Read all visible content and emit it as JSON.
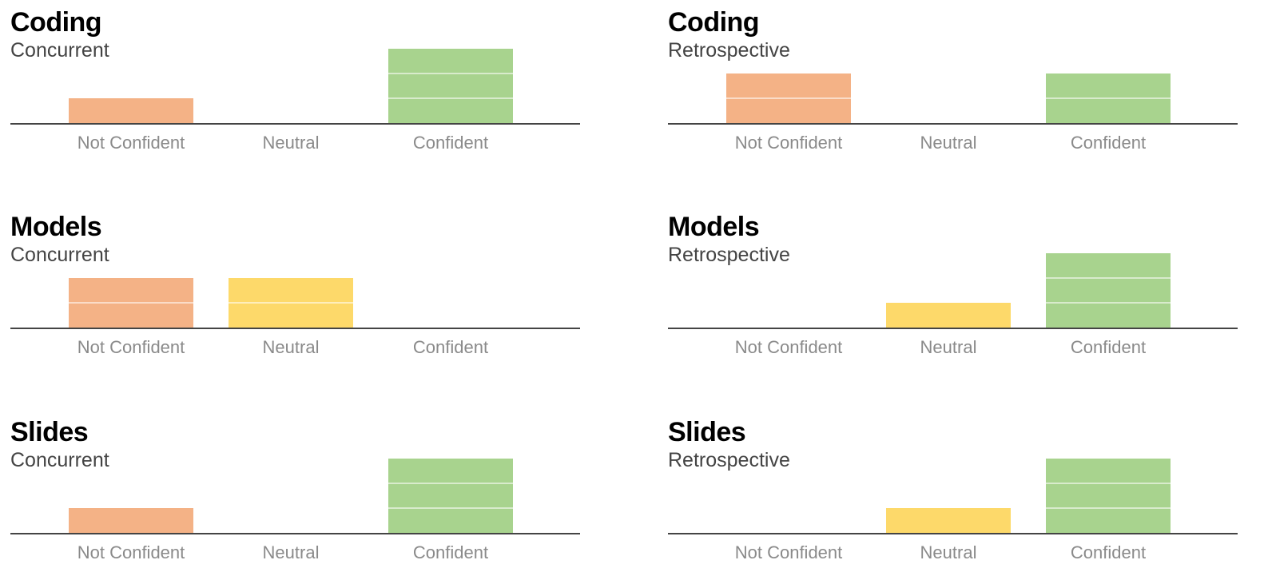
{
  "colors": {
    "not_confident": "#F4B286",
    "neutral": "#FDD96A",
    "confident": "#A8D38E",
    "baseline": "#444444",
    "category_label": "#8A8A8A"
  },
  "chart_data": [
    {
      "type": "bar",
      "title": "Coding",
      "subtitle": "Concurrent",
      "categories": [
        "Not Confident",
        "Neutral",
        "Confident"
      ],
      "values": [
        1,
        0,
        3
      ],
      "ylim": [
        0,
        3
      ]
    },
    {
      "type": "bar",
      "title": "Coding",
      "subtitle": "Retrospective",
      "categories": [
        "Not Confident",
        "Neutral",
        "Confident"
      ],
      "values": [
        2,
        0,
        2
      ],
      "ylim": [
        0,
        3
      ]
    },
    {
      "type": "bar",
      "title": "Models",
      "subtitle": "Concurrent",
      "categories": [
        "Not Confident",
        "Neutral",
        "Confident"
      ],
      "values": [
        2,
        2,
        0
      ],
      "ylim": [
        0,
        3
      ]
    },
    {
      "type": "bar",
      "title": "Models",
      "subtitle": "Retrospective",
      "categories": [
        "Not Confident",
        "Neutral",
        "Confident"
      ],
      "values": [
        0,
        1,
        3
      ],
      "ylim": [
        0,
        3
      ]
    },
    {
      "type": "bar",
      "title": "Slides",
      "subtitle": "Concurrent",
      "categories": [
        "Not Confident",
        "Neutral",
        "Confident"
      ],
      "values": [
        1,
        0,
        3
      ],
      "ylim": [
        0,
        3
      ]
    },
    {
      "type": "bar",
      "title": "Slides",
      "subtitle": "Retrospective",
      "categories": [
        "Not Confident",
        "Neutral",
        "Confident"
      ],
      "values": [
        0,
        1,
        3
      ],
      "ylim": [
        0,
        3
      ]
    }
  ]
}
